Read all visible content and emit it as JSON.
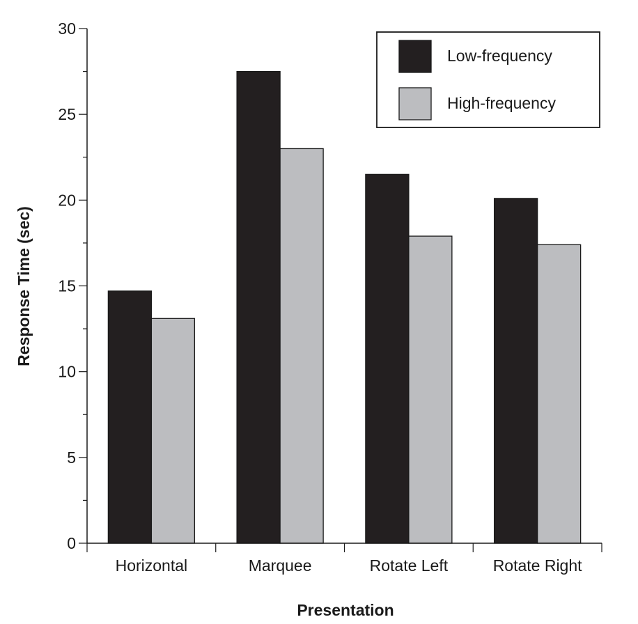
{
  "chart_data": {
    "type": "bar",
    "title": "",
    "xlabel": "Presentation",
    "ylabel": "Response Time (sec)",
    "ylim": [
      0,
      30
    ],
    "yticks": [
      0,
      5,
      10,
      15,
      20,
      25,
      30
    ],
    "ytick_labels": [
      "0",
      "5",
      "10",
      "15",
      "20",
      "25",
      "30"
    ],
    "minor_ytick_step": 2.5,
    "grid": false,
    "legend_position": "top-right",
    "categories": [
      "Horizontal",
      "Marquee",
      "Rotate Left",
      "Rotate Right"
    ],
    "series": [
      {
        "name": "Low-frequency",
        "color": "#231f20",
        "values": [
          14.7,
          27.5,
          21.5,
          20.1
        ]
      },
      {
        "name": "High-frequency",
        "color": "#bcbdc0",
        "values": [
          13.1,
          23.0,
          17.9,
          17.4
        ]
      }
    ]
  }
}
